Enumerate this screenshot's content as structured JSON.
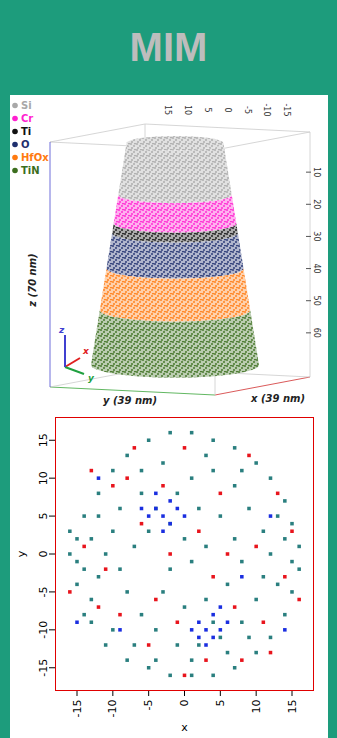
{
  "header": {
    "title": "MIM"
  },
  "reconstruction": {
    "legend": [
      {
        "label": "Si",
        "color": "#a8a8a8"
      },
      {
        "label": "Cr",
        "color": "#ff1fd0"
      },
      {
        "label": "Ti",
        "color": "#111111"
      },
      {
        "label": "O",
        "color": "#1f2f6e"
      },
      {
        "label": "HfOx",
        "color": "#ff7a10"
      },
      {
        "label": "TiN",
        "color": "#3c6e1e"
      }
    ],
    "layers": [
      {
        "name": "Si",
        "z": [
          1,
          17
        ]
      },
      {
        "name": "Cr",
        "z": [
          17,
          26
        ]
      },
      {
        "name": "Ti",
        "z": [
          26,
          29
        ]
      },
      {
        "name": "O",
        "z": [
          29,
          40
        ]
      },
      {
        "name": "HfOx",
        "z": [
          40,
          53
        ]
      },
      {
        "name": "TiN",
        "z": [
          53,
          70
        ]
      }
    ],
    "zlabel": "z (70 nm)",
    "xlabel": "x (39 nm)",
    "ylabel": "y (39 nm)",
    "zlim": [
      0,
      70
    ],
    "zticks": [
      10,
      20,
      30,
      40,
      50,
      60
    ],
    "top_lim": [
      19.5,
      -19.5
    ],
    "top_ticks": [
      15,
      10,
      5,
      0,
      -5,
      -10,
      -15
    ],
    "triad": [
      "x",
      "y",
      "z"
    ]
  },
  "chart_data": {
    "type": "scatter",
    "xlabel": "x",
    "ylabel": "y",
    "xlim": [
      -18,
      18
    ],
    "ylim": [
      -18,
      18
    ],
    "xticks": [
      -15,
      -10,
      -5,
      0,
      5,
      10,
      15
    ],
    "yticks": [
      -15,
      -10,
      -5,
      0,
      5,
      10,
      15
    ],
    "marker": "square",
    "series": [
      {
        "color": "#2a7f7f",
        "values": [
          [
            -15,
            2
          ],
          [
            -16,
            0
          ],
          [
            -14,
            -2
          ],
          [
            -15,
            -4
          ],
          [
            -13,
            -6
          ],
          [
            -16,
            3
          ],
          [
            -14,
            5
          ],
          [
            -12,
            8
          ],
          [
            -10,
            11
          ],
          [
            -8,
            13
          ],
          [
            -5,
            15
          ],
          [
            -2,
            16
          ],
          [
            1,
            16
          ],
          [
            4,
            15
          ],
          [
            7,
            14
          ],
          [
            10,
            12
          ],
          [
            12,
            10
          ],
          [
            14,
            7
          ],
          [
            15,
            4
          ],
          [
            16,
            1
          ],
          [
            16,
            -2
          ],
          [
            15,
            -5
          ],
          [
            14,
            -8
          ],
          [
            12,
            -11
          ],
          [
            10,
            -13
          ],
          [
            7,
            -15
          ],
          [
            4,
            -16
          ],
          [
            1,
            -16
          ],
          [
            -2,
            -16
          ],
          [
            -5,
            -15
          ],
          [
            -8,
            -14
          ],
          [
            -11,
            -12
          ],
          [
            -13,
            -9
          ],
          [
            -12,
            -3
          ],
          [
            -11,
            0
          ],
          [
            -10,
            3
          ],
          [
            -9,
            6
          ],
          [
            -6,
            8
          ],
          [
            -4,
            6
          ],
          [
            -2,
            4
          ],
          [
            -5,
            3
          ],
          [
            -7,
            1
          ],
          [
            -9,
            -2
          ],
          [
            -8,
            -5
          ],
          [
            -6,
            -8
          ],
          [
            -4,
            -10
          ],
          [
            -1,
            -12
          ],
          [
            2,
            -12
          ],
          [
            5,
            -11
          ],
          [
            8,
            -9
          ],
          [
            10,
            -6
          ],
          [
            11,
            -3
          ],
          [
            12,
            0
          ],
          [
            11,
            3
          ],
          [
            9,
            6
          ],
          [
            7,
            9
          ],
          [
            4,
            11
          ],
          [
            1,
            10
          ],
          [
            -1,
            8
          ],
          [
            2,
            6
          ],
          [
            5,
            5
          ],
          [
            7,
            2
          ],
          [
            8,
            -1
          ],
          [
            6,
            -4
          ],
          [
            3,
            -6
          ],
          [
            0,
            -7
          ],
          [
            -3,
            -5
          ],
          [
            -2,
            -2
          ],
          [
            1,
            -1
          ],
          [
            3,
            1
          ],
          [
            0,
            2
          ],
          [
            -13,
            2
          ],
          [
            -14,
            -8
          ],
          [
            -10,
            -10
          ],
          [
            13,
            -4
          ],
          [
            14,
            2
          ],
          [
            -3,
            12
          ],
          [
            3,
            13
          ],
          [
            -7,
            -12
          ],
          [
            6,
            -13
          ],
          [
            9,
            -11
          ],
          [
            -12,
            5
          ],
          [
            13,
            5
          ],
          [
            -6,
            11
          ],
          [
            8,
            11
          ],
          [
            4,
            -9
          ],
          [
            -4,
            -14
          ],
          [
            1,
            -14
          ],
          [
            15,
            -1
          ],
          [
            -15,
            -1
          ]
        ]
      },
      {
        "color": "#e8141c",
        "values": [
          [
            -14,
            1
          ],
          [
            -12,
            -7
          ],
          [
            -10,
            9
          ],
          [
            -7,
            14
          ],
          [
            -3,
            9
          ],
          [
            0,
            14
          ],
          [
            5,
            8
          ],
          [
            9,
            13
          ],
          [
            13,
            8
          ],
          [
            15,
            3
          ],
          [
            14,
            -3
          ],
          [
            11,
            -9
          ],
          [
            8,
            -14
          ],
          [
            3,
            -14
          ],
          [
            -1,
            -9
          ],
          [
            -5,
            -12
          ],
          [
            -9,
            -8
          ],
          [
            -11,
            -2
          ],
          [
            -6,
            4
          ],
          [
            -2,
            0
          ],
          [
            2,
            3
          ],
          [
            6,
            0
          ],
          [
            4,
            -3
          ],
          [
            10,
            1
          ],
          [
            -8,
            10
          ],
          [
            12,
            -13
          ],
          [
            -13,
            11
          ],
          [
            16,
            -6
          ],
          [
            -16,
            -5
          ],
          [
            0,
            -16
          ],
          [
            7,
            -7
          ],
          [
            -4,
            -6
          ]
        ]
      },
      {
        "color": "#1a2ee0",
        "values": [
          [
            -4,
            6
          ],
          [
            -3,
            5
          ],
          [
            -2,
            7
          ],
          [
            -5,
            5
          ],
          [
            -3,
            3
          ],
          [
            -1,
            6
          ],
          [
            -4,
            8
          ],
          [
            -2,
            4
          ],
          [
            -6,
            6
          ],
          [
            0,
            5
          ],
          [
            2,
            -9
          ],
          [
            3,
            -10
          ],
          [
            4,
            -8
          ],
          [
            5,
            -10
          ],
          [
            3,
            -12
          ],
          [
            2,
            -11
          ],
          [
            6,
            -9
          ],
          [
            4,
            -11
          ],
          [
            1,
            -10
          ],
          [
            5,
            -7
          ],
          [
            -9,
            -10
          ],
          [
            12,
            5
          ],
          [
            -12,
            10
          ],
          [
            8,
            -3
          ],
          [
            14,
            -10
          ],
          [
            -15,
            -9
          ]
        ]
      }
    ]
  }
}
